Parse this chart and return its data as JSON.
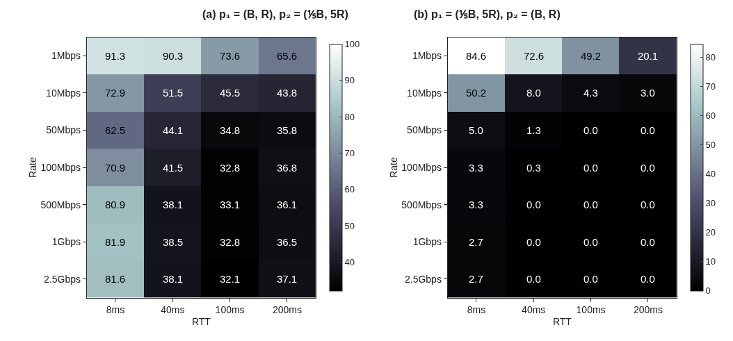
{
  "chart_data": [
    {
      "type": "heatmap",
      "title": "(a) p₁ = (B, R), p₂ = (⅕B, 5R)",
      "xlabel": "RTT",
      "ylabel": "Rate",
      "categories": [
        "8ms",
        "40ms",
        "100ms",
        "200ms"
      ],
      "y_categories": [
        "1Mbps",
        "10Mbps",
        "50Mbps",
        "100Mbps",
        "500Mbps",
        "1Gbps",
        "2.5Gbps"
      ],
      "cells": [
        [
          91.3,
          90.3,
          73.6,
          65.6
        ],
        [
          72.9,
          51.5,
          45.5,
          43.8
        ],
        [
          62.5,
          44.1,
          34.8,
          35.8
        ],
        [
          70.9,
          41.5,
          32.8,
          36.8
        ],
        [
          80.9,
          38.1,
          33.1,
          36.1
        ],
        [
          81.9,
          38.5,
          32.8,
          36.5
        ],
        [
          81.6,
          38.1,
          32.1,
          37.1
        ]
      ],
      "cell_labels": [
        [
          "91.3",
          "90.3",
          "73.6",
          "65.6"
        ],
        [
          "72.9",
          "51.5",
          "45.5",
          "43.8"
        ],
        [
          "62.5",
          "44.1",
          "34.8",
          "35.8"
        ],
        [
          "70.9",
          "41.5",
          "32.8",
          "36.8"
        ],
        [
          "80.9",
          "38.1",
          "33.1",
          "36.1"
        ],
        [
          "81.9",
          "38.5",
          "32.8",
          "36.5"
        ],
        [
          "81.6",
          "38.1",
          "32.1",
          "37.1"
        ]
      ],
      "clim": [
        32.1,
        100
      ],
      "cticks": [
        40,
        50,
        60,
        70,
        80,
        90,
        100
      ]
    },
    {
      "type": "heatmap",
      "title": "(b) p₁ = (⅕B, 5R), p₂ = (B, R)",
      "xlabel": "RTT",
      "ylabel": "Rate",
      "categories": [
        "8ms",
        "40ms",
        "100ms",
        "200ms"
      ],
      "y_categories": [
        "1Mbps",
        "10Mbps",
        "50Mbps",
        "100Mbps",
        "500Mbps",
        "1Gbps",
        "2.5Gbps"
      ],
      "cells": [
        [
          84.6,
          72.6,
          49.2,
          20.1
        ],
        [
          50.2,
          8.0,
          4.3,
          3.0
        ],
        [
          5.0,
          1.3,
          0.0,
          0.0
        ],
        [
          3.3,
          0.3,
          0.0,
          0.0
        ],
        [
          3.3,
          0.0,
          0.0,
          0.0
        ],
        [
          2.7,
          0.0,
          0.0,
          0.0
        ],
        [
          2.7,
          0.0,
          0.0,
          0.0
        ]
      ],
      "cell_labels": [
        [
          "84.6",
          "72.6",
          "49.2",
          "20.1"
        ],
        [
          "50.2",
          "8.0",
          "4.3",
          "3.0"
        ],
        [
          "5.0",
          "1.3",
          "0.0",
          "0.0"
        ],
        [
          "3.3",
          "0.3",
          "0.0",
          "0.0"
        ],
        [
          "3.3",
          "0.0",
          "0.0",
          "0.0"
        ],
        [
          "2.7",
          "0.0",
          "0.0",
          "0.0"
        ],
        [
          "2.7",
          "0.0",
          "0.0",
          "0.0"
        ]
      ],
      "clim": [
        0,
        84.6
      ],
      "cticks": [
        0,
        10,
        20,
        30,
        40,
        50,
        60,
        70,
        80
      ]
    }
  ]
}
